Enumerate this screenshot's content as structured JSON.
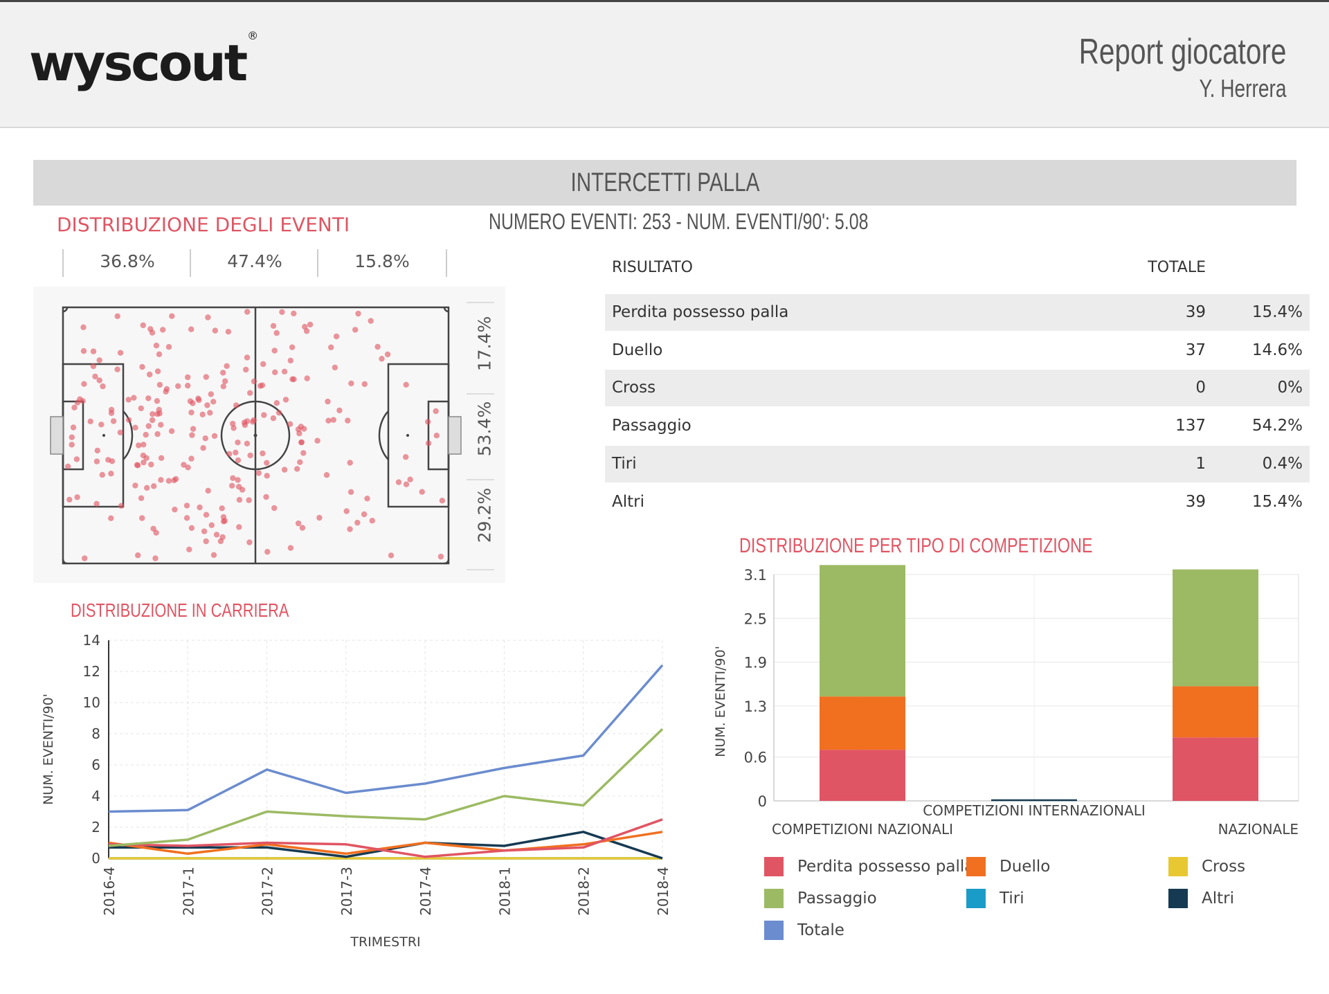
{
  "header": {
    "logo_text": "wyscout",
    "logo_mark": "®",
    "title": "Report giocatore",
    "player": "Y. Herrera"
  },
  "section": {
    "title": "INTERCETTI PALLA",
    "summary": "NUMERO EVENTI: 253  -  NUM. EVENTI/90': 5.08"
  },
  "event_distribution": {
    "title": "DISTRIBUZIONE DEGLI EVENTI",
    "horizontal_pcts": [
      "36.8%",
      "47.4%",
      "15.8%"
    ],
    "vertical_pcts": [
      "17.4%",
      "53.4%",
      "29.2%"
    ]
  },
  "results_table": {
    "col_result": "RISULTATO",
    "col_total": "TOTALE",
    "rows": [
      {
        "label": "Perdita possesso palla",
        "total": "39",
        "pct": "15.4%"
      },
      {
        "label": "Duello",
        "total": "37",
        "pct": "14.6%"
      },
      {
        "label": "Cross",
        "total": "0",
        "pct": "0%"
      },
      {
        "label": "Passaggio",
        "total": "137",
        "pct": "54.2%"
      },
      {
        "label": "Tiri",
        "total": "1",
        "pct": "0.4%"
      },
      {
        "label": "Altri",
        "total": "39",
        "pct": "15.4%"
      }
    ]
  },
  "colors": {
    "perdita": "#e05563",
    "duello": "#f07020",
    "cross": "#e8c832",
    "passaggio": "#9cba63",
    "tiri": "#1a9cc8",
    "altri": "#163a52",
    "totale": "#6b8cce",
    "heading_red": "#e05563"
  },
  "legend": [
    {
      "key": "perdita",
      "label": "Perdita possesso palla"
    },
    {
      "key": "duello",
      "label": "Duello"
    },
    {
      "key": "cross",
      "label": "Cross"
    },
    {
      "key": "passaggio",
      "label": "Passaggio"
    },
    {
      "key": "tiri",
      "label": "Tiri"
    },
    {
      "key": "altri",
      "label": "Altri"
    },
    {
      "key": "totale",
      "label": "Totale"
    }
  ],
  "chart_data": [
    {
      "type": "line",
      "title": "DISTRIBUZIONE IN CARRIERA",
      "xlabel": "TRIMESTRI",
      "ylabel": "NUM. EVENTI/90'",
      "ylim": [
        0,
        14
      ],
      "yticks": [
        "0",
        "2",
        "4",
        "6",
        "8",
        "10",
        "12",
        "14"
      ],
      "categories": [
        "2016-4",
        "2017-1",
        "2017-2",
        "2017-3",
        "2017-4",
        "2018-1",
        "2018-2",
        "2018-4"
      ],
      "series": [
        {
          "name": "Totale",
          "key": "totale",
          "values": [
            3.0,
            3.1,
            5.7,
            4.2,
            4.8,
            5.8,
            6.6,
            12.4
          ]
        },
        {
          "name": "Passaggio",
          "key": "passaggio",
          "values": [
            0.8,
            1.2,
            3.0,
            2.7,
            2.5,
            4.0,
            3.4,
            8.3
          ]
        },
        {
          "name": "Perdita possesso palla",
          "key": "perdita",
          "values": [
            0.9,
            0.8,
            1.0,
            0.9,
            0.1,
            0.5,
            0.7,
            2.5
          ]
        },
        {
          "name": "Duello",
          "key": "duello",
          "values": [
            1.0,
            0.3,
            0.9,
            0.3,
            1.0,
            0.5,
            0.9,
            1.7
          ]
        },
        {
          "name": "Altri",
          "key": "altri",
          "values": [
            0.7,
            0.7,
            0.7,
            0.1,
            1.0,
            0.8,
            1.7,
            0.0
          ]
        },
        {
          "name": "Cross",
          "key": "cross",
          "values": [
            0,
            0,
            0,
            0,
            0,
            0,
            0,
            0
          ]
        },
        {
          "name": "Tiri",
          "key": "tiri",
          "values": [
            0,
            0,
            0,
            0,
            0,
            0,
            0,
            0
          ]
        }
      ]
    },
    {
      "type": "bar",
      "stacked": true,
      "title": "DISTRIBUZIONE PER TIPO DI COMPETIZIONE",
      "ylabel": "NUM. EVENTI/90'",
      "ylim": [
        0,
        3.1
      ],
      "yticks": [
        "0",
        "0.6",
        "1.3",
        "1.9",
        "2.5",
        "3.1"
      ],
      "categories": [
        "COMPETIZIONI NAZIONALI",
        "COMPETIZIONI INTERNAZIONALI",
        "NAZIONALE"
      ],
      "series": [
        {
          "name": "Perdita possesso palla",
          "key": "perdita",
          "values": [
            0.7,
            0,
            0.87
          ]
        },
        {
          "name": "Duello",
          "key": "duello",
          "values": [
            0.73,
            0,
            0.7
          ]
        },
        {
          "name": "Passaggio",
          "key": "passaggio",
          "values": [
            1.8,
            0,
            1.6
          ]
        }
      ]
    }
  ]
}
